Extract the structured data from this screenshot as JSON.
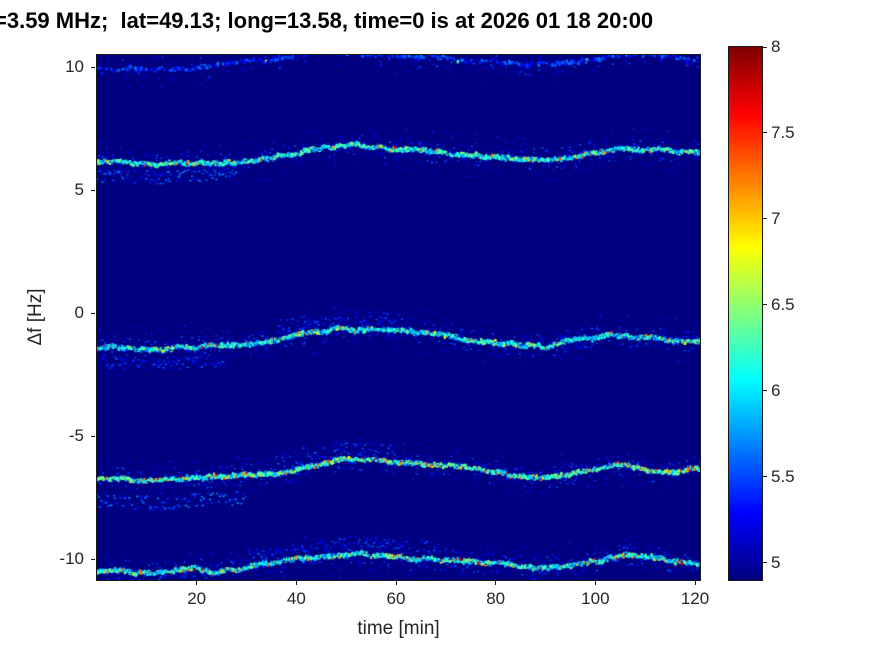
{
  "figure": {
    "title": "=3.59 MHz;  lat=49.13; long=13.58, time=0 is at 2026 01 18 20:00"
  },
  "chart_data": {
    "type": "heatmap",
    "title": "=3.59 MHz;  lat=49.13; long=13.58, time=0 is at 2026 01 18 20:00",
    "xlabel": "time [min]",
    "ylabel": "Δf [Hz]",
    "xlim": [
      0,
      121
    ],
    "ylim": [
      -10.85,
      10.5
    ],
    "x_ticks": [
      20,
      40,
      60,
      80,
      100,
      120
    ],
    "y_ticks": [
      10,
      5,
      0,
      -5,
      -10
    ],
    "grid": false,
    "colorbar": {
      "min": 4.9,
      "max": 8,
      "ticks": [
        5,
        5.5,
        6,
        6.5,
        7,
        7.5,
        8
      ],
      "colormap": "jet",
      "position": "right"
    },
    "background_value": 4.9,
    "doppler_shape": {
      "t": [
        0,
        6,
        12,
        20,
        28,
        36,
        44,
        50,
        58,
        66,
        74,
        82,
        90,
        98,
        106,
        114,
        121
      ],
      "offset": [
        -0.75,
        -0.85,
        -0.95,
        -0.7,
        -0.55,
        -0.1,
        0.6,
        0.95,
        0.75,
        0.45,
        0.2,
        -0.1,
        -0.4,
        -0.05,
        0.5,
        0.2,
        0.1
      ]
    },
    "traces": [
      {
        "name": "upper-edge-trace",
        "center_hz": 10.3,
        "amplitude_hz": 0.35,
        "base_intensity": 5.15,
        "intensity_spread": 0.55,
        "heat": 0.1,
        "gap_prob": 0.62,
        "clouds": []
      },
      {
        "name": "trace-plus-6",
        "center_hz": 6.45,
        "amplitude_hz": 0.45,
        "base_intensity": 5.7,
        "intensity_spread": 0.8,
        "heat": 0.45,
        "gap_prob": 0.05,
        "clouds": [
          {
            "t0": 0,
            "t1": 28,
            "offset_hz": -0.5,
            "spread_hz": 0.55,
            "base": 5.15,
            "var": 0.6,
            "skip": 0.35
          }
        ]
      },
      {
        "name": "trace-minus-1",
        "center_hz": -1.1,
        "amplitude_hz": 0.45,
        "base_intensity": 5.65,
        "intensity_spread": 0.8,
        "heat": 0.4,
        "gap_prob": 0.06,
        "clouds": [
          {
            "t0": 0,
            "t1": 26,
            "offset_hz": -0.55,
            "spread_hz": 0.5,
            "base": 5.1,
            "var": 0.55,
            "skip": 0.4
          },
          {
            "t0": 36,
            "t1": 62,
            "offset_hz": 0.55,
            "spread_hz": 0.6,
            "base": 5.1,
            "var": 0.5,
            "skip": 0.45
          }
        ]
      },
      {
        "name": "trace-minus-6",
        "center_hz": -6.45,
        "amplitude_hz": 0.45,
        "base_intensity": 5.75,
        "intensity_spread": 0.85,
        "heat": 0.8,
        "gap_prob": 0.05,
        "clouds": [
          {
            "t0": 0,
            "t1": 30,
            "offset_hz": -0.85,
            "spread_hz": 0.6,
            "base": 5.2,
            "var": 0.6,
            "skip": 0.3
          },
          {
            "t0": 36,
            "t1": 60,
            "offset_hz": 0.5,
            "spread_hz": 0.6,
            "base": 5.1,
            "var": 0.5,
            "skip": 0.5
          }
        ]
      },
      {
        "name": "trace-minus-10",
        "center_hz": -10.15,
        "amplitude_hz": 0.45,
        "base_intensity": 5.7,
        "intensity_spread": 0.8,
        "heat": 0.6,
        "gap_prob": 0.08,
        "clouds": [
          {
            "t0": 30,
            "t1": 70,
            "offset_hz": 0.45,
            "spread_hz": 0.5,
            "base": 5.1,
            "var": 0.5,
            "skip": 0.5
          }
        ]
      }
    ]
  },
  "colors": {
    "plot_background": "#00008f",
    "axis_text": "#262626",
    "title_color": "#000000",
    "frame": "#1a1a1a"
  }
}
